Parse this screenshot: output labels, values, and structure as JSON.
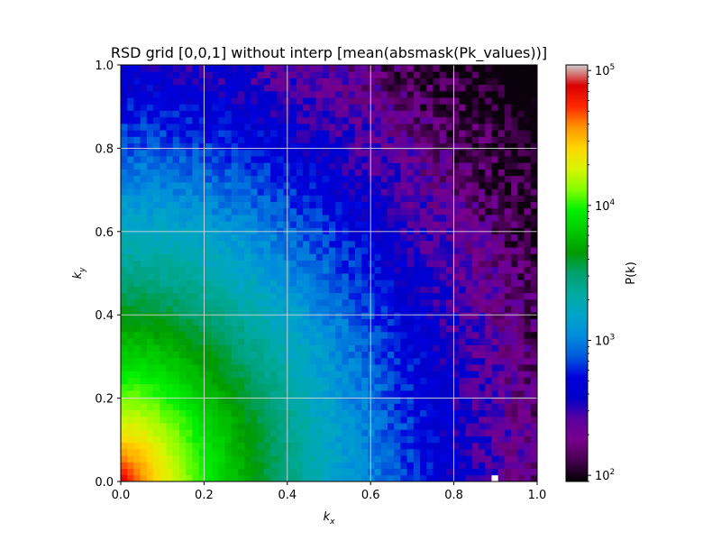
{
  "chart_data": {
    "type": "heatmap",
    "title": "RSD grid [0,0,1] without interp [mean(absmask(Pk_values))]",
    "xlabel": {
      "base": "k",
      "sub": "x"
    },
    "ylabel": {
      "base": "k",
      "sub": "y"
    },
    "xlim": [
      0.0,
      1.0
    ],
    "ylim": [
      0.0,
      1.0
    ],
    "xticks": [
      "0.0",
      "0.2",
      "0.4",
      "0.6",
      "0.8",
      "1.0"
    ],
    "yticks": [
      "0.0",
      "0.2",
      "0.4",
      "0.6",
      "0.8",
      "1.0"
    ],
    "grid": true,
    "grid_bins": 64,
    "colormap": "nipy_spectral",
    "colorbar": {
      "label": "P(k)",
      "scale": "log",
      "range": [
        90,
        110000
      ],
      "ticks": [
        {
          "base": "10",
          "exp": "2",
          "value": 100
        },
        {
          "base": "10",
          "exp": "3",
          "value": 1000
        },
        {
          "base": "10",
          "exp": "4",
          "value": 10000
        },
        {
          "base": "10",
          "exp": "5",
          "value": 100000
        }
      ]
    },
    "structure_notes": "P(k) is highest (~1e5) at the origin and decreases smoothly with |k| (approximately isotropic, slightly elongated along k_y); ~150 in the upper-right corner; noisy cells at larger k.",
    "peak_value": 100000,
    "min_value": 95,
    "blank_cells": [
      {
        "kx": 0.9,
        "ky": 0.008
      }
    ]
  }
}
